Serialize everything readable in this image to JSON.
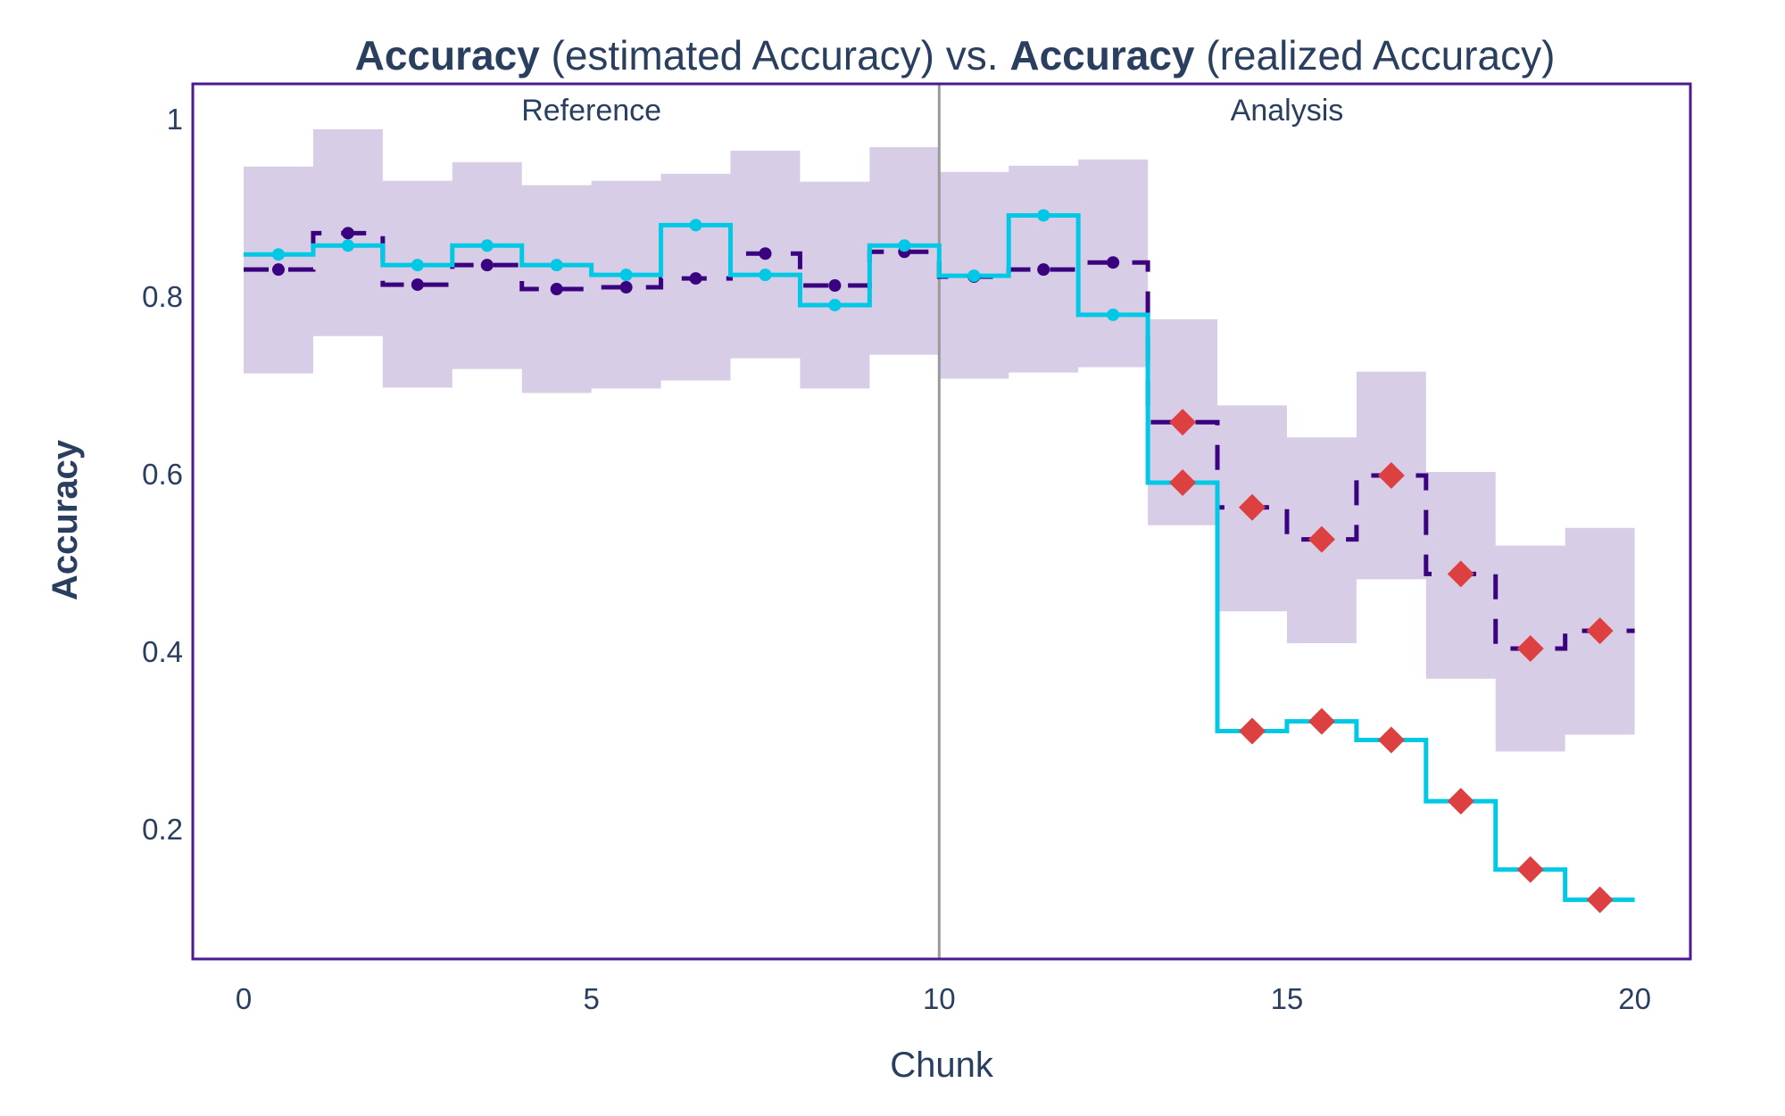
{
  "title": {
    "parts": [
      {
        "text": "Accuracy",
        "bold": true
      },
      {
        "text": " (estimated Accuracy) vs. ",
        "bold": false
      },
      {
        "text": "Accuracy",
        "bold": true
      },
      {
        "text": " (realized Accuracy)",
        "bold": false
      }
    ]
  },
  "colors": {
    "text": "#2a3f5f",
    "plot_border": "#4b1a92",
    "band": "#d8cde6",
    "estimated": "#3b0280",
    "realized": "#00c8e5",
    "alert": "#dd4040",
    "divider": "#9a9a9a"
  },
  "chart_data": {
    "type": "line",
    "title": "Accuracy (estimated Accuracy) vs. Accuracy (realized Accuracy)",
    "xlabel": "Chunk",
    "ylabel": "Accuracy",
    "xlim": [
      -0.7,
      20.8
    ],
    "ylim": [
      0.053,
      1.039
    ],
    "xticks": [
      0,
      5,
      10,
      15,
      20
    ],
    "xtick_labels": [
      "0",
      "5",
      "10",
      "15",
      "20"
    ],
    "yticks": [
      1,
      0.8,
      0.6,
      0.4,
      0.2
    ],
    "ytick_labels": [
      "1",
      "0.8",
      "0.6",
      "0.4",
      "0.2"
    ],
    "grid": false,
    "legend": null,
    "periods": [
      {
        "label": "Reference",
        "x_start": 0,
        "x_end": 10
      },
      {
        "label": "Analysis",
        "x_start": 10,
        "x_end": 20
      }
    ],
    "divider_x": 10,
    "chunks": [
      0,
      1,
      2,
      3,
      4,
      5,
      6,
      7,
      8,
      9,
      10,
      11,
      12,
      13,
      14,
      15,
      16,
      17,
      18,
      19
    ],
    "series": [
      {
        "name": "estimated Accuracy",
        "style": "dashed step",
        "values": [
          0.83,
          0.871,
          0.813,
          0.835,
          0.808,
          0.81,
          0.82,
          0.848,
          0.812,
          0.85,
          0.822,
          0.83,
          0.838,
          0.658,
          0.562,
          0.526,
          0.598,
          0.487,
          0.403,
          0.423
        ],
        "alert": [
          false,
          false,
          false,
          false,
          false,
          false,
          false,
          false,
          false,
          false,
          false,
          false,
          false,
          true,
          true,
          true,
          true,
          true,
          true,
          true
        ]
      },
      {
        "name": "realized Accuracy",
        "style": "solid step",
        "values": [
          0.847,
          0.857,
          0.835,
          0.857,
          0.835,
          0.824,
          0.88,
          0.824,
          0.79,
          0.857,
          0.823,
          0.891,
          0.779,
          0.59,
          0.31,
          0.321,
          0.3,
          0.231,
          0.154,
          0.12
        ],
        "alert": [
          false,
          false,
          false,
          false,
          false,
          false,
          false,
          false,
          false,
          false,
          false,
          false,
          false,
          true,
          true,
          true,
          true,
          true,
          true,
          true
        ]
      },
      {
        "name": "confidence band upper",
        "values": [
          0.946,
          0.988,
          0.93,
          0.951,
          0.925,
          0.93,
          0.938,
          0.964,
          0.929,
          0.968,
          0.94,
          0.947,
          0.954,
          0.774,
          0.677,
          0.641,
          0.715,
          0.602,
          0.519,
          0.539
        ]
      },
      {
        "name": "confidence band lower",
        "values": [
          0.713,
          0.755,
          0.697,
          0.718,
          0.691,
          0.696,
          0.705,
          0.73,
          0.696,
          0.734,
          0.707,
          0.714,
          0.72,
          0.542,
          0.445,
          0.409,
          0.481,
          0.369,
          0.287,
          0.306
        ]
      }
    ]
  }
}
